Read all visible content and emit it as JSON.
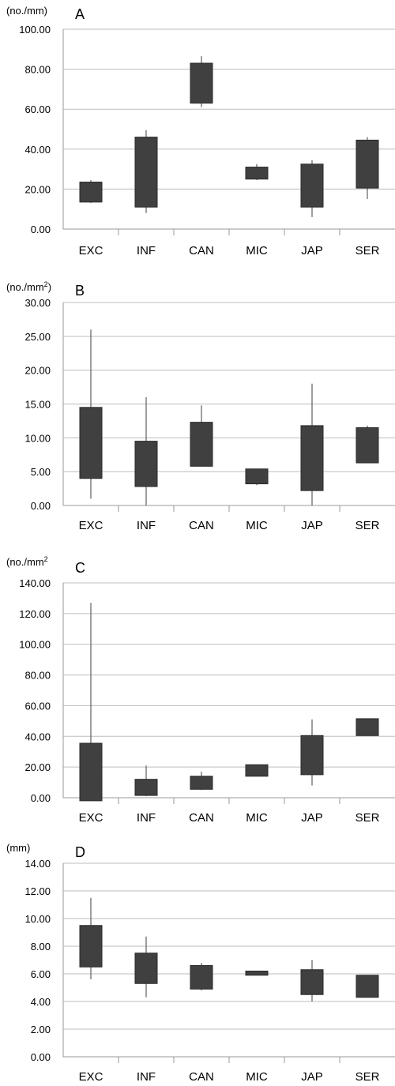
{
  "chart_data": [
    {
      "type": "box",
      "panel_letter": "A",
      "unit_label": "(no./mm)",
      "unit_sup": "",
      "unit_suffix": "",
      "categories": [
        "EXC",
        "INF",
        "CAN",
        "MIC",
        "JAP",
        "SER"
      ],
      "yticks": [
        "0.00",
        "20.00",
        "40.00",
        "60.00",
        "80.00",
        "100.00"
      ],
      "ylim": [
        0,
        100
      ],
      "grid": true,
      "color": "#404040",
      "boxes": [
        {
          "low": 13,
          "q1": 13.5,
          "q3": 23.5,
          "high": 24.5
        },
        {
          "low": 8,
          "q1": 11,
          "q3": 46,
          "high": 49.5
        },
        {
          "low": 61,
          "q1": 63,
          "q3": 83,
          "high": 86.5
        },
        {
          "low": 24.5,
          "q1": 25,
          "q3": 31,
          "high": 32.5
        },
        {
          "low": 6,
          "q1": 11,
          "q3": 32.5,
          "high": 34.5
        },
        {
          "low": 15,
          "q1": 20.5,
          "q3": 44.5,
          "high": 46
        }
      ]
    },
    {
      "type": "box",
      "panel_letter": "B",
      "unit_label": "(no./mm",
      "unit_sup": "2",
      "unit_suffix": ")",
      "categories": [
        "EXC",
        "INF",
        "CAN",
        "MIC",
        "JAP",
        "SER"
      ],
      "yticks": [
        "0.00",
        "5.00",
        "10.00",
        "15.00",
        "20.00",
        "25.00",
        "30.00"
      ],
      "ylim": [
        0,
        30
      ],
      "grid": true,
      "color": "#404040",
      "boxes": [
        {
          "low": 1,
          "q1": 4,
          "q3": 14.5,
          "high": 26
        },
        {
          "low": 0,
          "q1": 2.8,
          "q3": 9.5,
          "high": 16
        },
        {
          "low": 5.8,
          "q1": 5.8,
          "q3": 12.3,
          "high": 14.8
        },
        {
          "low": 3,
          "q1": 3.2,
          "q3": 5.4,
          "high": 5.4
        },
        {
          "low": 0,
          "q1": 2.2,
          "q3": 11.8,
          "high": 18
        },
        {
          "low": 6.3,
          "q1": 6.3,
          "q3": 11.5,
          "high": 11.8
        }
      ]
    },
    {
      "type": "box",
      "panel_letter": "C",
      "unit_label": "(no./mm",
      "unit_sup": "2",
      "unit_suffix": "",
      "categories": [
        "EXC",
        "INF",
        "CAN",
        "MIC",
        "JAP",
        "SER"
      ],
      "yticks": [
        "0.00",
        "20.00",
        "40.00",
        "60.00",
        "80.00",
        "100.00",
        "120.00",
        "140.00"
      ],
      "ylim": [
        0,
        140
      ],
      "grid": true,
      "color": "#404040",
      "boxes": [
        {
          "low": -2,
          "q1": -2,
          "q3": 35.5,
          "high": 127
        },
        {
          "low": 1,
          "q1": 1.5,
          "q3": 12,
          "high": 21
        },
        {
          "low": 5,
          "q1": 5.5,
          "q3": 14,
          "high": 17
        },
        {
          "low": 14,
          "q1": 14,
          "q3": 21.5,
          "high": 21.5
        },
        {
          "low": 8,
          "q1": 15,
          "q3": 40.5,
          "high": 51
        },
        {
          "low": 40.5,
          "q1": 40.5,
          "q3": 51.5,
          "high": 51.5
        }
      ]
    },
    {
      "type": "box",
      "panel_letter": "D",
      "unit_label": "(mm)",
      "unit_sup": "",
      "unit_suffix": "",
      "categories": [
        "EXC",
        "INF",
        "CAN",
        "MIC",
        "JAP",
        "SER"
      ],
      "yticks": [
        "0.00",
        "2.00",
        "4.00",
        "6.00",
        "8.00",
        "10.00",
        "12.00",
        "14.00"
      ],
      "ylim": [
        0,
        14
      ],
      "grid": true,
      "color": "#404040",
      "boxes": [
        {
          "low": 5.6,
          "q1": 6.5,
          "q3": 9.5,
          "high": 11.5
        },
        {
          "low": 4.3,
          "q1": 5.3,
          "q3": 7.5,
          "high": 8.7
        },
        {
          "low": 4.8,
          "q1": 4.9,
          "q3": 6.6,
          "high": 6.8
        },
        {
          "low": 5.9,
          "q1": 5.9,
          "q3": 6.2,
          "high": 6.2
        },
        {
          "low": 4,
          "q1": 4.5,
          "q3": 6.3,
          "high": 7
        },
        {
          "low": 4.3,
          "q1": 4.3,
          "q3": 5.9,
          "high": 5.9
        }
      ]
    }
  ]
}
